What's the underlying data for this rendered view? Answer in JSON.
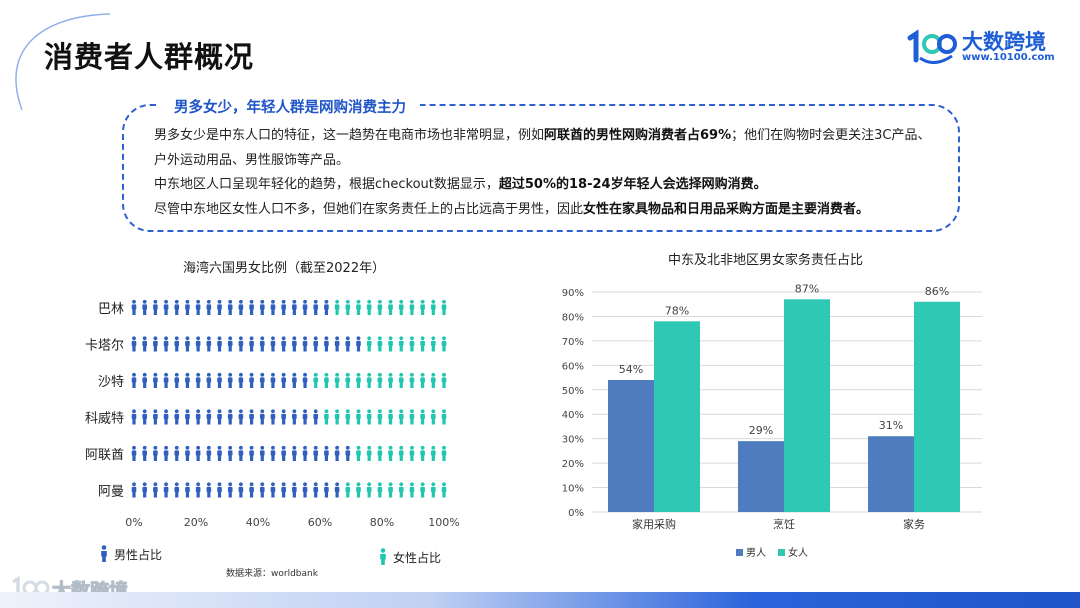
{
  "page": {
    "title": "消费者人群概况",
    "brand": {
      "name": "大数跨境",
      "url": "www.10100.com",
      "mark": "100"
    },
    "accent_color": "#1f55c8",
    "source_note": "数据来源：worldbank"
  },
  "callout": {
    "heading": "男多女少，年轻人群是网购消费主力",
    "p1_a": "男多女少是中东人口的特征，这一趋势在电商市场也非常明显，例如",
    "p1_b": "阿联酋的男性网购消费者占69%",
    "p1_c": "；他们在购物时会更关注3C产品、户外运动用品、男性服饰等产品。",
    "p2_a": "中东地区人口呈现年轻化的趋势，根据checkout数据显示，",
    "p2_b": "超过50%的18-24岁年轻人会选择网购消费。",
    "p3_a": "尽管中东地区女性人口不多，但她们在家务责任上的占比远高于男性，因此",
    "p3_b": "女性在家具物品和日用品采购方面是主要消费者。"
  },
  "chart_data": [
    {
      "type": "bar",
      "orientation": "horizontal",
      "style": "pictogram",
      "title": "海湾六国男女比例（截至2022年）",
      "categories": [
        "巴林",
        "卡塔尔",
        "沙特",
        "科威特",
        "阿联酋",
        "阿曼"
      ],
      "series": [
        {
          "name": "男性占比",
          "color": "#2f5fbf",
          "values": [
            62,
            73,
            58,
            61,
            69,
            66
          ]
        },
        {
          "name": "女性占比",
          "color": "#20c7b0",
          "values": [
            38,
            27,
            42,
            39,
            31,
            34
          ]
        }
      ],
      "xlim": [
        0,
        100
      ],
      "x_ticks": [
        "0%",
        "20%",
        "40%",
        "60%",
        "80%",
        "100%"
      ],
      "grid": false,
      "legend": "bottom"
    },
    {
      "type": "bar",
      "title": "中东及北非地区男女家务责任占比",
      "categories": [
        "家用采购",
        "烹饪",
        "家务"
      ],
      "series": [
        {
          "name": "男人",
          "color": "#4f7cbf",
          "values": [
            54,
            29,
            31
          ],
          "labels": [
            "54%",
            "29%",
            "31%"
          ]
        },
        {
          "name": "女人",
          "color": "#2ec8b4",
          "values": [
            78,
            87,
            86
          ],
          "labels": [
            "78%",
            "87%",
            "86%"
          ]
        }
      ],
      "ylim": [
        0,
        90
      ],
      "y_ticks": [
        "0%",
        "10%",
        "20%",
        "30%",
        "40%",
        "50%",
        "60%",
        "70%",
        "80%",
        "90%"
      ],
      "grid": true,
      "legend": "bottom"
    }
  ]
}
